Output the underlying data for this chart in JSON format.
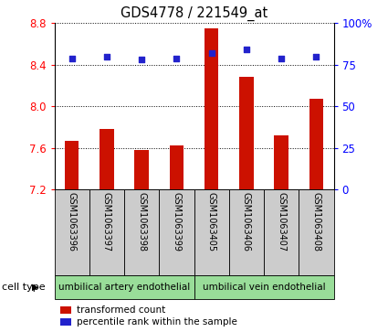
{
  "title": "GDS4778 / 221549_at",
  "samples": [
    "GSM1063396",
    "GSM1063397",
    "GSM1063398",
    "GSM1063399",
    "GSM1063405",
    "GSM1063406",
    "GSM1063407",
    "GSM1063408"
  ],
  "transformed_count": [
    7.67,
    7.78,
    7.58,
    7.62,
    8.75,
    8.28,
    7.72,
    8.07
  ],
  "percentile_rank": [
    79,
    80,
    78,
    79,
    82,
    84,
    79,
    80
  ],
  "ylim_left": [
    7.2,
    8.8
  ],
  "ylim_right": [
    0,
    100
  ],
  "yticks_left": [
    7.2,
    7.6,
    8.0,
    8.4,
    8.8
  ],
  "yticks_right": [
    0,
    25,
    50,
    75,
    100
  ],
  "ytick_labels_right": [
    "0",
    "25",
    "50",
    "75",
    "100%"
  ],
  "bar_color": "#cc1100",
  "dot_color": "#2222cc",
  "bar_width": 0.4,
  "cell_types": [
    {
      "label": "umbilical artery endothelial",
      "start": 0,
      "end": 3
    },
    {
      "label": "umbilical vein endothelial",
      "start": 4,
      "end": 7
    }
  ],
  "cell_type_label": "cell type",
  "legend_bar_label": "transformed count",
  "legend_dot_label": "percentile rank within the sample",
  "grid_color": "#000000",
  "bg_color": "#ffffff",
  "cell_type_bg": "#99dd99",
  "sample_bg": "#cccccc"
}
